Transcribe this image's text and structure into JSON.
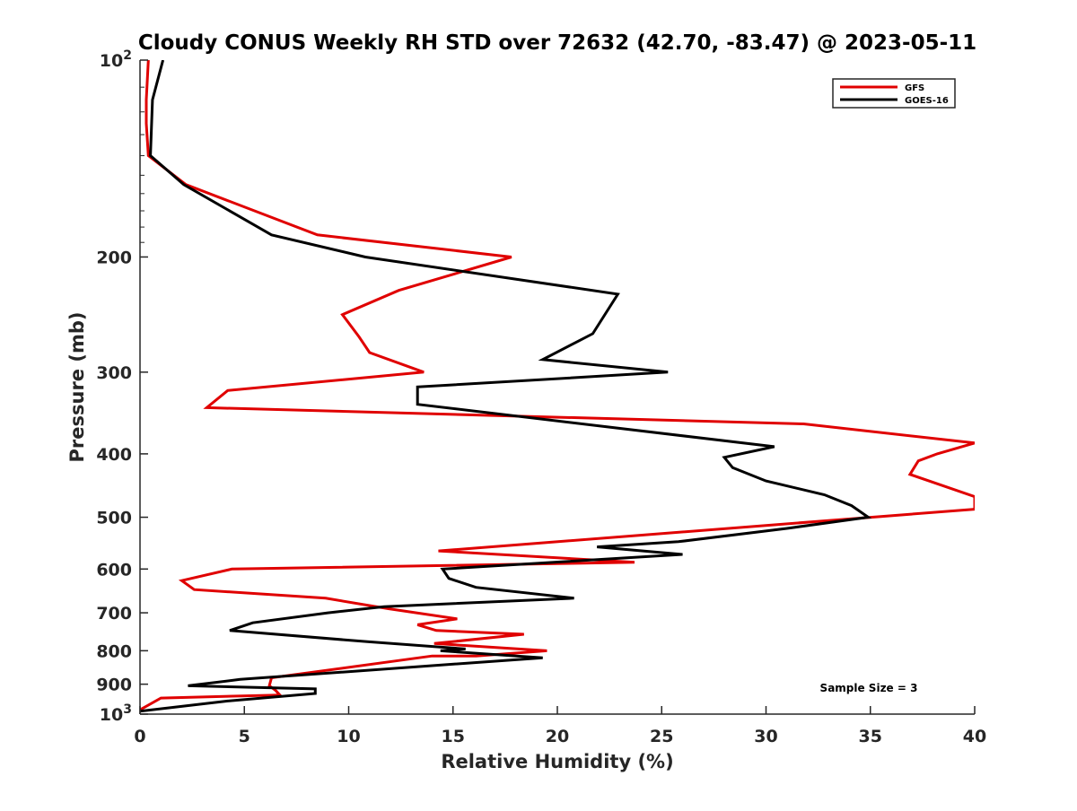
{
  "chart_data": {
    "type": "line",
    "title": "Cloudy CONUS Weekly RH STD over 72632 (42.70, -83.47) @ 2023-05-11",
    "xlabel": "Relative Humidity (%)",
    "ylabel": "Pressure (mb)",
    "xlim": [
      0,
      40
    ],
    "ylim": [
      100,
      1000
    ],
    "y_scale": "log",
    "y_reversed": true,
    "x_ticks": [
      "0",
      "5",
      "10",
      "15",
      "20",
      "25",
      "30",
      "35",
      "40"
    ],
    "y_ticks": [
      {
        "value": 100,
        "base": "10",
        "exp": "2"
      },
      {
        "value": 200,
        "label": "200"
      },
      {
        "value": 300,
        "label": "300"
      },
      {
        "value": 400,
        "label": "400"
      },
      {
        "value": 500,
        "label": "500"
      },
      {
        "value": 600,
        "label": "600"
      },
      {
        "value": 700,
        "label": "700"
      },
      {
        "value": 800,
        "label": "800"
      },
      {
        "value": 900,
        "label": "900"
      },
      {
        "value": 1000,
        "base": "10",
        "exp": "3"
      }
    ],
    "legend_position": "top-right",
    "grid": false,
    "annotation": "Sample Size = 3",
    "series": [
      {
        "name": "GFS",
        "color": "#e00000",
        "points": [
          [
            0.4,
            100
          ],
          [
            0.3,
            115
          ],
          [
            0.3,
            125
          ],
          [
            0.4,
            140
          ],
          [
            2.2,
            155
          ],
          [
            8.5,
            185
          ],
          [
            17.8,
            200
          ],
          [
            12.4,
            225
          ],
          [
            9.7,
            245
          ],
          [
            10.5,
            265
          ],
          [
            11.0,
            280
          ],
          [
            13.6,
            300
          ],
          [
            4.2,
            320
          ],
          [
            3.2,
            340
          ],
          [
            31.8,
            360
          ],
          [
            40.0,
            385
          ],
          [
            38.2,
            400
          ],
          [
            37.3,
            410
          ],
          [
            36.9,
            430
          ],
          [
            40.0,
            465
          ],
          [
            40.0,
            486
          ],
          [
            19.0,
            548
          ],
          [
            14.3,
            563
          ],
          [
            23.7,
            586
          ],
          [
            4.4,
            600
          ],
          [
            2.0,
            625
          ],
          [
            2.6,
            645
          ],
          [
            8.9,
            665
          ],
          [
            11.9,
            690
          ],
          [
            15.2,
            715
          ],
          [
            13.3,
            730
          ],
          [
            14.2,
            745
          ],
          [
            18.4,
            755
          ],
          [
            14.1,
            780
          ],
          [
            19.5,
            800
          ],
          [
            16.1,
            815
          ],
          [
            14.0,
            815
          ],
          [
            6.3,
            880
          ],
          [
            6.2,
            905
          ],
          [
            6.5,
            920
          ],
          [
            6.7,
            935
          ],
          [
            1.0,
            945
          ],
          [
            0.0,
            985
          ]
        ]
      },
      {
        "name": "GOES-16",
        "color": "#000000",
        "points": [
          [
            1.1,
            100
          ],
          [
            0.6,
            115
          ],
          [
            0.5,
            140
          ],
          [
            2.1,
            155
          ],
          [
            6.3,
            185
          ],
          [
            10.8,
            200
          ],
          [
            22.9,
            228
          ],
          [
            21.7,
            262
          ],
          [
            19.3,
            287
          ],
          [
            25.3,
            300
          ],
          [
            13.3,
            316
          ],
          [
            13.3,
            336
          ],
          [
            30.4,
            390
          ],
          [
            28.0,
            405
          ],
          [
            28.4,
            420
          ],
          [
            30.0,
            440
          ],
          [
            32.8,
            462
          ],
          [
            34.1,
            480
          ],
          [
            34.9,
            500
          ],
          [
            31.0,
            520
          ],
          [
            25.8,
            545
          ],
          [
            21.9,
            555
          ],
          [
            26.0,
            570
          ],
          [
            14.5,
            600
          ],
          [
            14.8,
            620
          ],
          [
            16.1,
            640
          ],
          [
            20.8,
            665
          ],
          [
            11.7,
            685
          ],
          [
            9.0,
            700
          ],
          [
            5.4,
            725
          ],
          [
            4.3,
            745
          ],
          [
            10.9,
            775
          ],
          [
            15.6,
            795
          ],
          [
            14.4,
            800
          ],
          [
            19.3,
            820
          ],
          [
            4.8,
            885
          ],
          [
            2.3,
            905
          ],
          [
            8.4,
            915
          ],
          [
            8.4,
            930
          ],
          [
            4.2,
            955
          ],
          [
            0.0,
            990
          ]
        ]
      }
    ]
  }
}
